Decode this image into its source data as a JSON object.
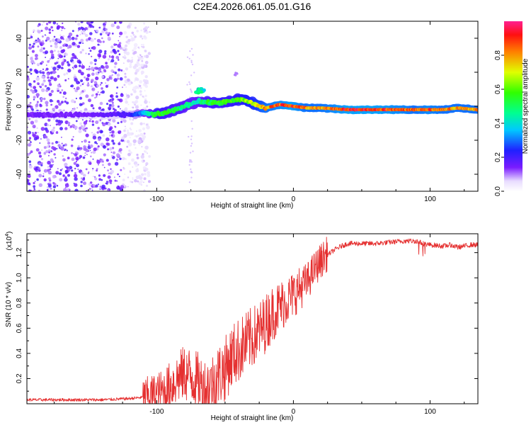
{
  "title": "C2E4.2026.061.05.01.G16",
  "colors": {
    "snr_line": "#e53030",
    "axis": "#000000"
  },
  "chart_data": [
    {
      "type": "heatmap",
      "name": "spectrogram",
      "title": "C2E4.2026.061.05.01.G16",
      "xlabel": "Height of straight line (km)",
      "ylabel": "Frequency (Hz)",
      "xlim": [
        -195,
        135
      ],
      "ylim": [
        -50,
        50
      ],
      "x_ticks": [
        -100,
        0,
        100
      ],
      "x_tick_labels": [
        "-100",
        "0",
        "100"
      ],
      "y_ticks": [
        -40,
        -20,
        0,
        20,
        40
      ],
      "y_tick_labels": [
        "-40",
        "-20",
        "0",
        "20",
        "40"
      ],
      "colorbar": {
        "label": "Normalized spectral amplitude",
        "range": [
          0,
          1
        ],
        "ticks": [
          0.0,
          0.2,
          0.4,
          0.6,
          0.8
        ],
        "tick_labels": [
          "0.0",
          "0.2",
          "0.4",
          "0.6",
          "0.8"
        ]
      },
      "noise_region": {
        "x_range": [
          -195,
          -105
        ],
        "freq_range": [
          -50,
          50
        ]
      },
      "signal_track": {
        "x": [
          -195,
          -150,
          -120,
          -110,
          -100,
          -90,
          -80,
          -70,
          -62,
          -55,
          -45,
          -38,
          -30,
          -25,
          -20,
          -10,
          0,
          10,
          20,
          40,
          60,
          80,
          90,
          100,
          110,
          120,
          135
        ],
        "freq": [
          -5,
          -5,
          -5,
          -4,
          -5,
          -3,
          0,
          3,
          2,
          2,
          3,
          4,
          2,
          0,
          -1,
          1,
          0,
          -1,
          -1,
          -2,
          -2,
          -2,
          -2,
          -2,
          -2,
          -1,
          -2
        ],
        "amplitude": [
          0.15,
          0.15,
          0.2,
          0.35,
          0.6,
          0.55,
          0.5,
          0.45,
          0.55,
          0.6,
          0.6,
          0.65,
          0.7,
          0.75,
          0.85,
          0.9,
          0.95,
          0.85,
          0.85,
          0.95,
          0.95,
          0.9,
          0.85,
          0.9,
          0.85,
          0.85,
          0.85
        ]
      }
    },
    {
      "type": "line",
      "name": "snr",
      "xlabel": "Height of straight line (km)",
      "ylabel": "SNR (10 * v/v)",
      "y_multiplier_label": "(x10",
      "y_multiplier_exp": "4",
      "y_multiplier_close": ")",
      "xlim": [
        -195,
        135
      ],
      "ylim": [
        0,
        1.35
      ],
      "x_ticks": [
        -100,
        0,
        100
      ],
      "x_tick_labels": [
        "-100",
        "0",
        "100"
      ],
      "y_ticks": [
        0.2,
        0.4,
        0.6,
        0.8,
        1.0,
        1.2
      ],
      "y_tick_labels": [
        "0.2",
        "0.4",
        "0.6",
        "0.8",
        "1.0",
        "1.2"
      ],
      "series": [
        {
          "name": "SNR",
          "x": [
            -195,
            -180,
            -160,
            -140,
            -120,
            -110,
            -100,
            -95,
            -90,
            -85,
            -80,
            -75,
            -70,
            -65,
            -60,
            -55,
            -50,
            -45,
            -40,
            -35,
            -30,
            -25,
            -20,
            -15,
            -10,
            -5,
            0,
            5,
            10,
            15,
            20,
            25,
            30,
            35,
            40,
            50,
            60,
            70,
            80,
            90,
            95,
            100,
            110,
            115,
            120,
            130,
            135
          ],
          "y": [
            0.03,
            0.03,
            0.03,
            0.03,
            0.04,
            0.05,
            0.06,
            0.08,
            0.12,
            0.18,
            0.22,
            0.2,
            0.15,
            0.1,
            0.12,
            0.2,
            0.25,
            0.35,
            0.4,
            0.45,
            0.5,
            0.55,
            0.62,
            0.7,
            0.75,
            0.8,
            0.85,
            0.9,
            0.95,
            1.05,
            1.12,
            1.18,
            1.22,
            1.25,
            1.27,
            1.27,
            1.27,
            1.28,
            1.29,
            1.29,
            1.27,
            1.26,
            1.25,
            1.26,
            1.24,
            1.26,
            1.26
          ],
          "color": "#e53030"
        }
      ]
    }
  ]
}
